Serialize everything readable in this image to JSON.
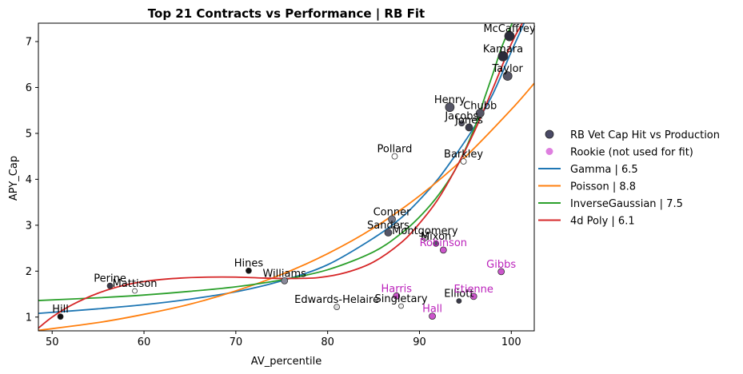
{
  "chart_data": {
    "type": "scatter",
    "title": "Top 21 Contracts vs Performance | RB Fit",
    "xlabel": "AV_percentile",
    "ylabel": "APY_Cap",
    "xlim": [
      48.5,
      102.5
    ],
    "ylim": [
      0.7,
      7.4
    ],
    "xticks": [
      50,
      60,
      70,
      80,
      90,
      100
    ],
    "yticks": [
      1,
      2,
      3,
      4,
      5,
      6,
      7
    ],
    "grid": false,
    "legend_position": "right-outside",
    "legend": [
      {
        "label": "RB Vet Cap Hit vs Production",
        "kind": "marker",
        "color": "#4a4a66"
      },
      {
        "label": "Rookie (not used for fit)",
        "kind": "marker",
        "color": "#de7fdf"
      },
      {
        "label": "Gamma | 6.5",
        "kind": "line",
        "color": "#1f77b4"
      },
      {
        "label": "Poisson | 8.8",
        "kind": "line",
        "color": "#ff7f0e"
      },
      {
        "label": "InverseGaussian | 7.5",
        "kind": "line",
        "color": "#2ca02c"
      },
      {
        "label": "4d Poly | 6.1",
        "kind": "line",
        "color": "#d62728"
      }
    ],
    "veterans": [
      {
        "name": "McCaffrey",
        "x": 99.8,
        "y": 7.12,
        "size": 6,
        "shade": "#2b2b3a"
      },
      {
        "name": "Kamara",
        "x": 99.1,
        "y": 6.68,
        "size": 6,
        "shade": "#2b2b3a"
      },
      {
        "name": "Taylor",
        "x": 99.6,
        "y": 6.25,
        "size": 5.5,
        "shade": "#555566"
      },
      {
        "name": "Henry",
        "x": 93.3,
        "y": 5.57,
        "size": 5.5,
        "shade": "#555566"
      },
      {
        "name": "Chubb",
        "x": 96.6,
        "y": 5.44,
        "size": 5,
        "shade": "#555566"
      },
      {
        "name": "Jacobs",
        "x": 94.6,
        "y": 5.22,
        "size": 3.5,
        "shade": "#555566"
      },
      {
        "name": "Jones",
        "x": 95.4,
        "y": 5.13,
        "size": 4.5,
        "shade": "#3a3a4a"
      },
      {
        "name": "Pollard",
        "x": 87.3,
        "y": 4.5,
        "size": 3.5,
        "shade": "#ffffff"
      },
      {
        "name": "Barkley",
        "x": 94.8,
        "y": 4.39,
        "size": 3.5,
        "shade": "#ffffff"
      },
      {
        "name": "Conner",
        "x": 87.0,
        "y": 3.13,
        "size": 4.5,
        "shade": "#777788"
      },
      {
        "name": "Sanders",
        "x": 86.6,
        "y": 2.84,
        "size": 4.5,
        "shade": "#555566"
      },
      {
        "name": "Montgomery",
        "x": 90.6,
        "y": 2.72,
        "size": 3.5,
        "shade": "#cccccc"
      },
      {
        "name": "Mixon",
        "x": 91.8,
        "y": 2.6,
        "size": 3.5,
        "shade": "#555566"
      },
      {
        "name": "Hines",
        "x": 71.4,
        "y": 2.01,
        "size": 3.5,
        "shade": "#111111"
      },
      {
        "name": "Williams",
        "x": 75.3,
        "y": 1.79,
        "size": 4,
        "shade": "#888899"
      },
      {
        "name": "Perine",
        "x": 56.3,
        "y": 1.68,
        "size": 3.5,
        "shade": "#3a3a4a"
      },
      {
        "name": "Mattison",
        "x": 59.0,
        "y": 1.57,
        "size": 3,
        "shade": "#ffffff"
      },
      {
        "name": "Edwards-Helaire",
        "x": 81.0,
        "y": 1.22,
        "size": 3.5,
        "shade": "#dddddd"
      },
      {
        "name": "Singletary",
        "x": 88.0,
        "y": 1.24,
        "size": 3,
        "shade": "#eeeeee"
      },
      {
        "name": "Elliott",
        "x": 94.3,
        "y": 1.35,
        "size": 3,
        "shade": "#3a3a4a"
      },
      {
        "name": "Hill",
        "x": 50.9,
        "y": 1.01,
        "size": 3.5,
        "shade": "#111111"
      }
    ],
    "rookies": [
      {
        "name": "Robinson",
        "x": 92.6,
        "y": 2.46
      },
      {
        "name": "Gibbs",
        "x": 98.9,
        "y": 1.99
      },
      {
        "name": "Harris",
        "x": 87.5,
        "y": 1.46
      },
      {
        "name": "Etienne",
        "x": 95.9,
        "y": 1.45
      },
      {
        "name": "Hall",
        "x": 91.4,
        "y": 1.02
      }
    ],
    "fits": [
      {
        "name": "Gamma | 6.5",
        "color": "#1f77b4",
        "x": [
          48.5,
          55,
          60,
          65,
          70,
          75,
          80,
          85,
          88,
          90,
          92,
          94,
          96,
          98,
          100,
          101.4
        ],
        "y": [
          1.08,
          1.18,
          1.27,
          1.39,
          1.55,
          1.79,
          2.14,
          2.72,
          3.16,
          3.55,
          4.0,
          4.55,
          5.15,
          5.86,
          6.78,
          7.4
        ]
      },
      {
        "name": "Poisson | 8.8",
        "color": "#ff7f0e",
        "x": [
          48.5,
          55,
          60,
          65,
          70,
          75,
          80,
          85,
          90,
          95,
          100,
          102.5
        ],
        "y": [
          0.71,
          0.88,
          1.06,
          1.28,
          1.57,
          1.93,
          2.38,
          2.94,
          3.64,
          4.49,
          5.52,
          6.09
        ]
      },
      {
        "name": "InverseGaussian | 7.5",
        "color": "#2ca02c",
        "x": [
          48.5,
          55,
          60,
          65,
          70,
          75,
          80,
          85,
          88,
          90,
          92,
          94,
          96,
          97,
          98,
          99,
          100.1
        ],
        "y": [
          1.36,
          1.42,
          1.48,
          1.56,
          1.66,
          1.81,
          2.03,
          2.42,
          2.82,
          3.18,
          3.64,
          4.25,
          5.12,
          5.72,
          6.3,
          6.9,
          7.4
        ]
      },
      {
        "name": "4d Poly | 6.1",
        "color": "#d62728",
        "x": [
          48.5,
          50,
          52,
          55,
          58,
          61,
          64,
          67,
          70,
          73,
          76,
          79,
          82,
          85,
          88,
          90,
          92,
          94,
          96,
          98,
          100,
          101.2
        ],
        "y": [
          0.76,
          1.0,
          1.25,
          1.52,
          1.7,
          1.8,
          1.85,
          1.87,
          1.87,
          1.85,
          1.84,
          1.86,
          1.97,
          2.2,
          2.62,
          3.04,
          3.56,
          4.25,
          5.05,
          5.98,
          6.95,
          7.4
        ]
      }
    ]
  }
}
